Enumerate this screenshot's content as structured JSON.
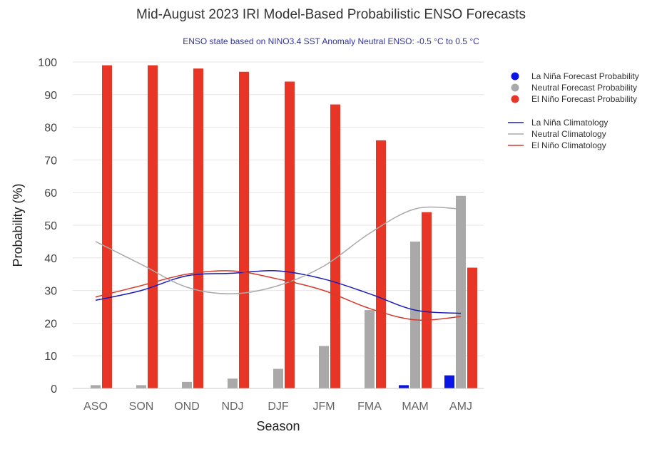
{
  "chart_data": {
    "type": "bar",
    "title": "Mid-August 2023 IRI Model-Based Probabilistic ENSO Forecasts",
    "subtitle": "ENSO state based on NINO3.4 SST Anomaly Neutral ENSO: -0.5 °C to 0.5 °C",
    "xlabel": "Season",
    "ylabel": "Probability (%)",
    "ylim": [
      0,
      100
    ],
    "yticks": [
      "0",
      "10",
      "20",
      "30",
      "40",
      "50",
      "60",
      "70",
      "80",
      "90",
      "100"
    ],
    "grid": true,
    "legend_position": "top-right",
    "categories": [
      "ASO",
      "SON",
      "OND",
      "NDJ",
      "DJF",
      "JFM",
      "FMA",
      "MAM",
      "AMJ"
    ],
    "series": [
      {
        "name": "La Niña Forecast Probability",
        "kind": "bar",
        "color": "#0a14e6",
        "values": [
          0,
          0,
          0,
          0,
          0,
          0,
          0,
          1,
          4
        ]
      },
      {
        "name": "Neutral Forecast Probability",
        "kind": "bar",
        "color": "#a9a9a9",
        "values": [
          1,
          1,
          2,
          3,
          6,
          13,
          24,
          45,
          59
        ]
      },
      {
        "name": "El Niño Forecast Probability",
        "kind": "bar",
        "color": "#e83525",
        "values": [
          99,
          99,
          98,
          97,
          94,
          87,
          76,
          54,
          37
        ]
      },
      {
        "name": "La Niña Climatology",
        "kind": "line",
        "color": "#1a1ab8",
        "values": [
          27,
          30,
          34.5,
          35.3,
          36,
          33.5,
          29,
          24,
          23
        ]
      },
      {
        "name": "Neutral Climatology",
        "kind": "line",
        "color": "#a9a9a9",
        "values": [
          45,
          38,
          31,
          29,
          31.5,
          37.5,
          47.5,
          55,
          55
        ]
      },
      {
        "name": "El Niño Climatology",
        "kind": "line",
        "color": "#d63a2c",
        "values": [
          28,
          31.5,
          35,
          36,
          33.5,
          30,
          24.5,
          21,
          22
        ]
      }
    ]
  }
}
